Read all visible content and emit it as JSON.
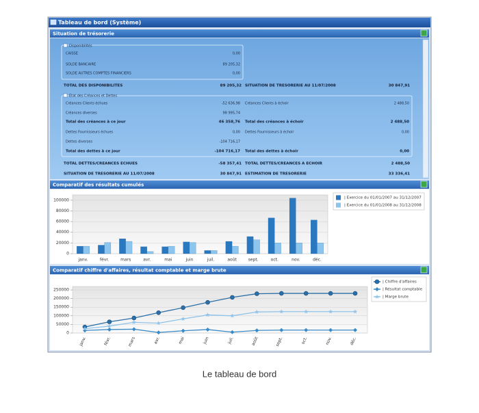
{
  "window": {
    "title": "Tableau de bord (Système)"
  },
  "treasury": {
    "title": "Situation de trésorerie",
    "group1": {
      "title": "Disponibilités",
      "rows": [
        [
          "CAISSE",
          "0,00"
        ],
        [
          "SOLDE BANCAIRE",
          "89 205,32"
        ],
        [
          "SOLDE AUTRES COMPTES FINANCIERS",
          "0,00"
        ]
      ]
    },
    "total1": [
      "TOTAL DES DISPONIBILITES",
      "89 205,32",
      "SITUATION DE TRESORERIE AU 11/07/2008",
      "30 847,91"
    ],
    "group2": {
      "title": "Etat des Créances et Dettes",
      "rows": [
        [
          "Créances Clients échues",
          "-52 636,98",
          "Créances Clients à échoir",
          "2 488,50"
        ],
        [
          "Créances diverses",
          "98 995,74"
        ],
        [
          "Total des créances à ce jour",
          "46 358,76",
          "Total des créances à échoir",
          "2 488,50"
        ],
        [
          "Dettes Fournisseurs échues",
          "0,00",
          "Dettes Fournisseurs à échoir",
          "0,00"
        ],
        [
          "Dettes diverses",
          "-104 716,17"
        ],
        [
          "Total des dettes à ce jour",
          "-104 716,17",
          "Total des dettes à échoir",
          "0,00"
        ]
      ]
    },
    "totals": [
      [
        "TOTAL DETTES/CREANCES ECHUES",
        "-58 357,41",
        "TOTAL DETTES/CREANCES A ECHOIR",
        "2 488,50"
      ],
      [
        "SITUATION DE TRESORERIE AU 11/07/2008",
        "30 847,91",
        "ESTIMATION DE TRESORERIE",
        "33 336,41"
      ]
    ]
  },
  "chart_data": [
    {
      "type": "bar",
      "title": "Comparatif des résultats cumulés",
      "categories": [
        "janv.",
        "févr.",
        "mars",
        "avr.",
        "mai",
        "juin",
        "juil.",
        "août",
        "sept.",
        "oct.",
        "nov.",
        "déc."
      ],
      "series": [
        {
          "name": "| Exercice du 01/01/2007 au 31/12/2007",
          "color": "#2a78c0",
          "values": [
            14000,
            16000,
            28000,
            13000,
            13000,
            22000,
            6000,
            23000,
            32000,
            67000,
            104000,
            63000
          ]
        },
        {
          "name": "| Exercice du 01/01/2008 au 31/12/2008",
          "color": "#8cc6ee",
          "values": [
            14000,
            21000,
            23000,
            4000,
            14000,
            21000,
            6000,
            14000,
            26000,
            20000,
            20000,
            20000
          ]
        }
      ],
      "ylim": [
        0,
        110000
      ],
      "yticks": [
        0,
        20000,
        40000,
        60000,
        80000,
        100000
      ],
      "grid": true,
      "legend": "right"
    },
    {
      "type": "line",
      "title": "Comparatif chiffre d'affaires, résultat comptable et marge brute",
      "categories": [
        "janv.",
        "févr.",
        "mars",
        "avr.",
        "mai",
        "juin",
        "juil.",
        "août",
        "sept.",
        "oct.",
        "nov.",
        "déc."
      ],
      "series": [
        {
          "name": "| Chiffre d'affaires",
          "color": "#2a6fa8",
          "marker": "circle",
          "values": [
            35000,
            65000,
            87000,
            118000,
            147000,
            178000,
            207000,
            228000,
            230000,
            230000,
            230000,
            230000
          ]
        },
        {
          "name": "| Résultat comptable",
          "color": "#3a8ac8",
          "marker": "diamond",
          "values": [
            15000,
            20000,
            22000,
            3000,
            13000,
            20000,
            5000,
            15000,
            17000,
            17000,
            17000,
            17000
          ]
        },
        {
          "name": "| Marge brute",
          "color": "#8fc3ea",
          "marker": "star",
          "values": [
            25000,
            40000,
            62000,
            57000,
            82000,
            105000,
            100000,
            122000,
            124000,
            124000,
            124000,
            124000
          ]
        }
      ],
      "ylim": [
        0,
        270000
      ],
      "yticks": [
        0,
        50000,
        100000,
        150000,
        200000,
        250000
      ],
      "grid": true,
      "legend": "right"
    }
  ],
  "caption": "Le tableau de bord"
}
